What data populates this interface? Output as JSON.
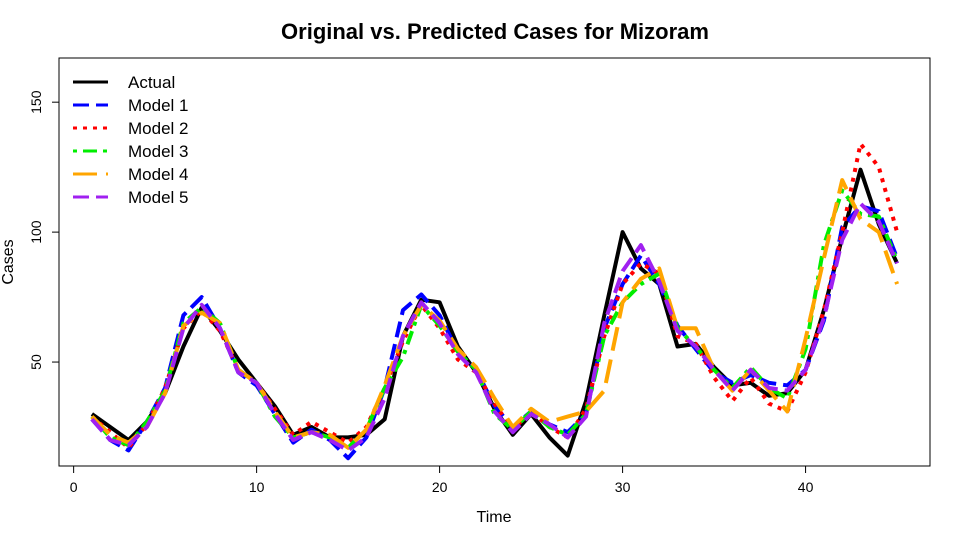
{
  "chart_data": {
    "type": "line",
    "title": "Original vs. Predicted Cases for Mizoram",
    "xlabel": "Time",
    "ylabel": "Cases",
    "xlim": [
      -0.8,
      46.8
    ],
    "ylim": [
      10,
      167
    ],
    "x_ticks": [
      0,
      10,
      20,
      30,
      40
    ],
    "y_ticks": [
      50,
      100,
      150
    ],
    "legend_position": "top-left",
    "x": [
      1,
      2,
      3,
      4,
      5,
      6,
      7,
      8,
      9,
      10,
      11,
      12,
      13,
      14,
      15,
      16,
      17,
      18,
      19,
      20,
      21,
      22,
      23,
      24,
      25,
      26,
      27,
      28,
      29,
      30,
      31,
      32,
      33,
      34,
      35,
      36,
      37,
      38,
      39,
      40,
      41,
      42,
      43,
      44,
      45
    ],
    "series": [
      {
        "name": "Actual",
        "color": "#000000",
        "dash": "solid",
        "width": 4,
        "values": [
          30,
          25,
          20,
          27,
          38,
          56,
          71,
          62,
          51,
          42,
          33,
          22,
          25,
          21,
          21,
          22,
          28,
          60,
          74,
          73,
          56,
          46,
          32,
          22,
          30,
          21,
          14,
          35,
          68,
          100,
          86,
          80,
          56,
          57,
          48,
          41,
          42,
          37,
          38,
          47,
          70,
          98,
          124,
          103,
          88
        ]
      },
      {
        "name": "Model 1",
        "color": "#0000ff",
        "dash": "longdash",
        "width": 4,
        "values": [
          28,
          20,
          16,
          27,
          40,
          68,
          75,
          63,
          46,
          41,
          30,
          19,
          24,
          20,
          13,
          21,
          40,
          70,
          76,
          68,
          54,
          47,
          33,
          25,
          31,
          26,
          23,
          30,
          63,
          80,
          91,
          80,
          64,
          55,
          46,
          42,
          45,
          42,
          41,
          47,
          66,
          102,
          110,
          108,
          90
        ]
      },
      {
        "name": "Model 2",
        "color": "#ff0000",
        "dash": "dotted",
        "width": 4,
        "values": [
          29,
          23,
          17,
          26,
          40,
          63,
          70,
          62,
          47,
          42,
          32,
          22,
          27,
          23,
          19,
          25,
          40,
          58,
          72,
          63,
          51,
          46,
          34,
          24,
          31,
          25,
          21,
          32,
          60,
          80,
          88,
          84,
          60,
          57,
          44,
          35,
          44,
          34,
          31,
          46,
          70,
          100,
          134,
          125,
          100
        ]
      },
      {
        "name": "Model 3",
        "color": "#00ee00",
        "dash": "dotdash",
        "width": 4,
        "values": [
          29,
          21,
          18,
          27,
          39,
          65,
          71,
          65,
          47,
          42,
          29,
          21,
          23,
          21,
          17,
          24,
          40,
          52,
          72,
          64,
          54,
          47,
          30,
          24,
          31,
          25,
          22,
          30,
          60,
          73,
          80,
          84,
          63,
          56,
          47,
          40,
          48,
          40,
          36,
          55,
          95,
          116,
          107,
          106,
          89
        ]
      },
      {
        "name": "Model 4",
        "color": "#ffa500",
        "dash": "twodash",
        "width": 4,
        "values": [
          29,
          22,
          19,
          25,
          38,
          64,
          69,
          65,
          47,
          42,
          31,
          21,
          23,
          22,
          17,
          24,
          41,
          60,
          72,
          66,
          55,
          48,
          36,
          25,
          32,
          27,
          29,
          31,
          39,
          73,
          82,
          86,
          63,
          63,
          47,
          39,
          47,
          39,
          31,
          59,
          90,
          120,
          105,
          100,
          80
        ]
      },
      {
        "name": "Model 5",
        "color": "#a020f0",
        "dash": "longdash",
        "width": 4,
        "values": [
          28,
          20,
          18,
          25,
          38,
          63,
          72,
          63,
          46,
          42,
          30,
          20,
          23,
          20,
          16,
          21,
          36,
          60,
          73,
          65,
          53,
          46,
          31,
          23,
          30,
          26,
          21,
          29,
          65,
          85,
          95,
          81,
          62,
          56,
          47,
          39,
          47,
          40,
          39,
          47,
          67,
          97,
          111,
          104,
          88
        ]
      }
    ]
  }
}
